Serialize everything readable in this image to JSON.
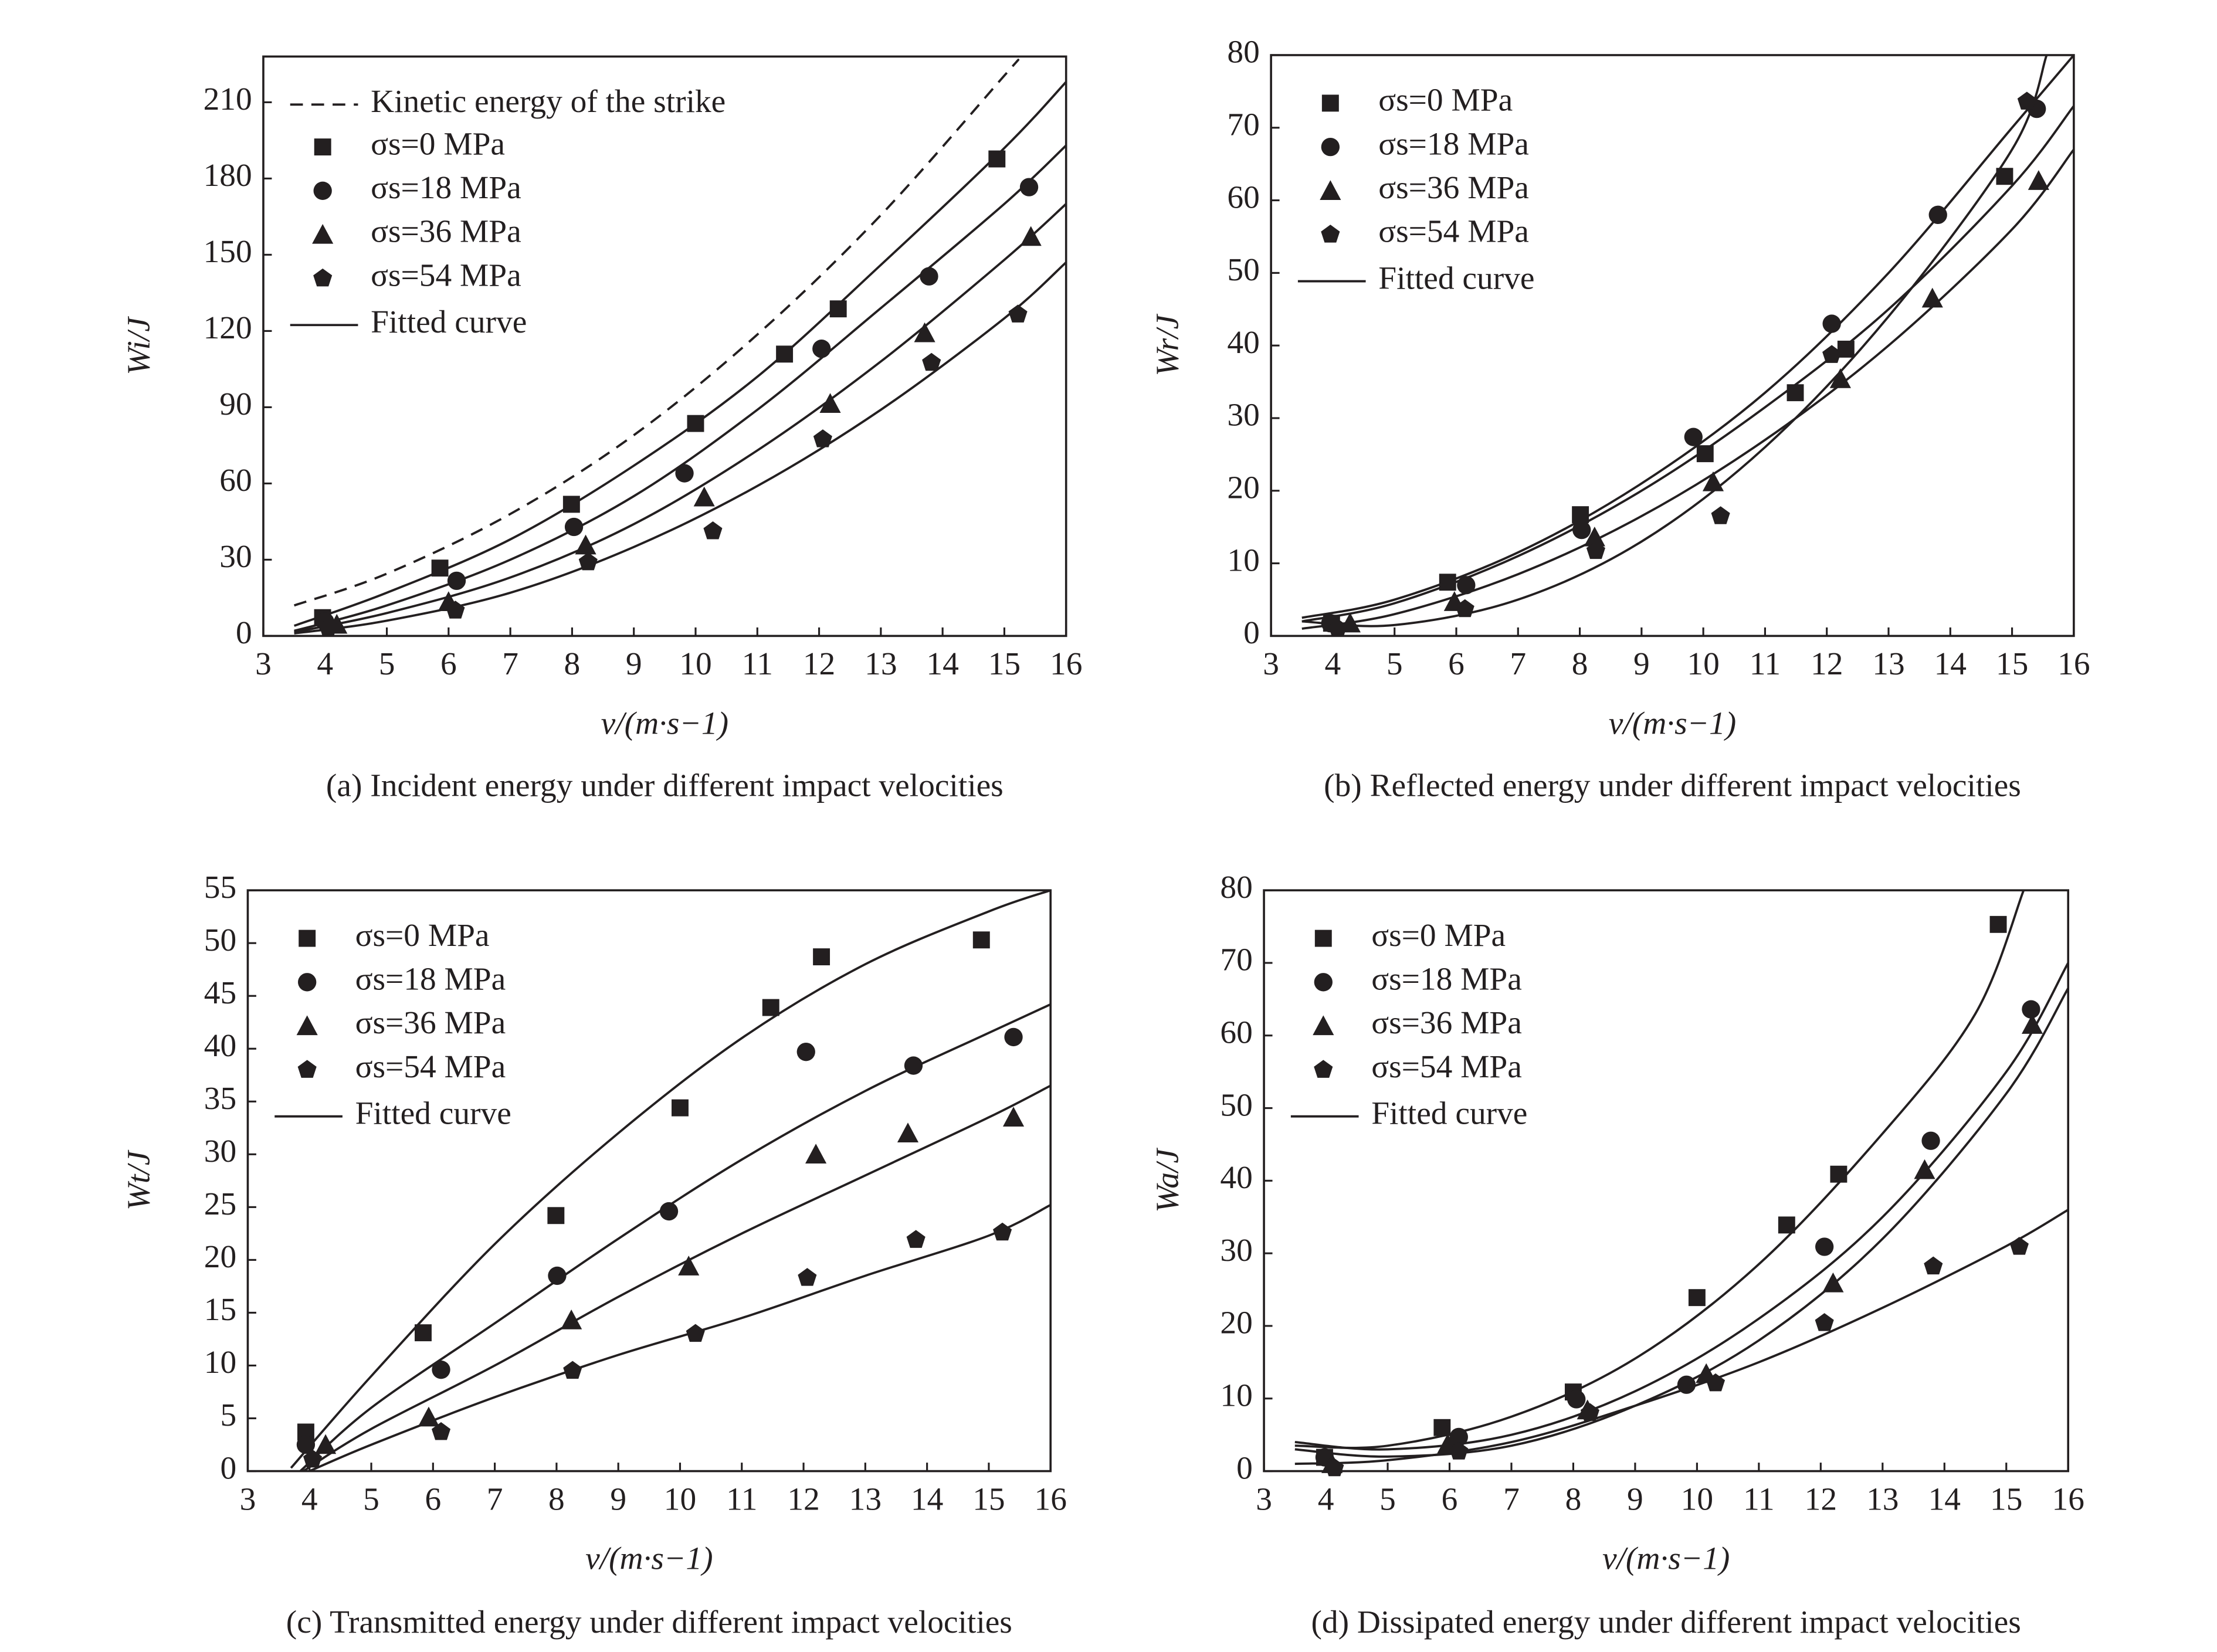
{
  "chart_data": [
    {
      "type": "scatter",
      "title": "(a) Incident energy under different impact velocities",
      "xlabel": "v/(m·s−1)",
      "ylabel": "Wi/J",
      "xlim": [
        3,
        16
      ],
      "xticks": [
        3,
        4,
        5,
        6,
        7,
        8,
        9,
        10,
        11,
        12,
        13,
        14,
        15,
        16
      ],
      "ylim": [
        0,
        228
      ],
      "yticks": [
        0,
        30,
        60,
        90,
        120,
        150,
        180,
        210
      ],
      "legend": "upper left",
      "color": "#231f20",
      "reference": {
        "name": "Kinetic energy of the strike",
        "style": "dashed",
        "x": [
          3.5,
          5,
          7,
          9,
          11,
          13,
          15,
          15.2
        ],
        "values": [
          12,
          24.5,
          48,
          79,
          118.6,
          165.6,
          220.5,
          226
        ]
      },
      "series": [
        {
          "name": "σs=0 MPa",
          "marker": "square",
          "x": [
            3.96,
            5.86,
            7.99,
            10.0,
            11.44,
            12.31,
            14.88
          ],
          "values": [
            7.2,
            26.7,
            51.8,
            83.6,
            110.9,
            128.7,
            187.7
          ]
        },
        {
          "name": "σs=18 MPa",
          "marker": "circle",
          "x": [
            4.0,
            6.13,
            8.03,
            9.82,
            12.04,
            13.78,
            15.4
          ],
          "values": [
            5.6,
            21.7,
            42.9,
            64,
            113,
            141.5,
            176.6
          ]
        },
        {
          "name": "σs=36 MPa",
          "marker": "triangle",
          "x": [
            4.19,
            6.0,
            8.22,
            10.14,
            12.18,
            13.71,
            15.43
          ],
          "values": [
            4.5,
            13.4,
            35.7,
            54.6,
            91.4,
            119.2,
            157.1
          ]
        },
        {
          "name": "σs=54 MPa",
          "marker": "pentagon",
          "x": [
            4.05,
            6.11,
            8.26,
            10.28,
            12.06,
            13.82,
            15.22
          ],
          "values": [
            3.3,
            10,
            29,
            41.2,
            77.4,
            107.5,
            126.5
          ]
        }
      ],
      "fit_label": "Fitted curve",
      "fits": [
        {
          "x": [
            3.5,
            5,
            7,
            9,
            11,
            13,
            15,
            16
          ],
          "values": [
            4,
            17,
            38,
            67,
            102,
            146,
            192,
            218
          ]
        },
        {
          "x": [
            3.5,
            5,
            7,
            9,
            11,
            13,
            15,
            16
          ],
          "values": [
            2,
            12,
            30,
            55,
            89,
            129,
            170,
            193
          ]
        },
        {
          "x": [
            3.5,
            5,
            7,
            9,
            11,
            13,
            15,
            16
          ],
          "values": [
            1.5,
            9,
            23,
            44,
            73,
            108,
            148,
            170
          ]
        },
        {
          "x": [
            3.5,
            5,
            7,
            9,
            11,
            13,
            15,
            16
          ],
          "values": [
            1,
            6,
            17,
            35,
            59,
            89,
            125,
            147
          ]
        }
      ]
    },
    {
      "type": "scatter",
      "title": "(b) Reflected energy under different impact velocities",
      "xlabel": "v/(m·s−1)",
      "ylabel": "Wr/J",
      "xlim": [
        3,
        16
      ],
      "xticks": [
        3,
        4,
        5,
        6,
        7,
        8,
        9,
        10,
        11,
        12,
        13,
        14,
        15,
        16
      ],
      "ylim": [
        0,
        80
      ],
      "yticks": [
        0,
        10,
        20,
        30,
        40,
        50,
        60,
        70,
        80
      ],
      "legend": "upper left",
      "color": "#231f20",
      "series": [
        {
          "name": "σs=0 MPa",
          "marker": "square",
          "x": [
            3.98,
            5.86,
            8.01,
            10.03,
            11.49,
            12.31,
            14.88
          ],
          "values": [
            1.75,
            7.4,
            16.7,
            25.1,
            33.5,
            39.5,
            63.3
          ]
        },
        {
          "name": "σs=18 MPa",
          "marker": "circle",
          "x": [
            3.96,
            6.16,
            8.03,
            9.84,
            12.08,
            13.8,
            15.4
          ],
          "values": [
            1.75,
            7,
            14.6,
            27.4,
            43,
            58,
            72.6
          ]
        },
        {
          "name": "σs=36 MPa",
          "marker": "triangle",
          "x": [
            4.28,
            5.97,
            8.24,
            10.16,
            12.22,
            13.71,
            15.43
          ],
          "values": [
            1.75,
            4.7,
            13.6,
            21.2,
            35.4,
            46.5,
            62.7
          ]
        },
        {
          "name": "σs=54 MPa",
          "marker": "pentagon",
          "x": [
            4.08,
            6.14,
            8.26,
            10.28,
            12.08,
            15.24
          ],
          "values": [
            1,
            3.7,
            11.7,
            16.5,
            38.7,
            73.6
          ]
        }
      ],
      "fit_label": "Fitted curve",
      "fits": [
        {
          "x": [
            3.5,
            5,
            7,
            9,
            11,
            13,
            15,
            16
          ],
          "values": [
            2,
            4.5,
            11,
            20,
            31.5,
            45,
            62,
            73
          ]
        },
        {
          "x": [
            3.5,
            5,
            7,
            9,
            11,
            13,
            15,
            16
          ],
          "values": [
            2.5,
            5,
            11.5,
            21,
            33.5,
            50,
            70,
            80
          ]
        },
        {
          "x": [
            3.5,
            5,
            7,
            9,
            11,
            13,
            15,
            16
          ],
          "values": [
            1,
            3,
            8.5,
            16.5,
            27,
            40,
            56,
            67
          ]
        },
        {
          "x": [
            3.5,
            5,
            7,
            9,
            11,
            13,
            15,
            15.56
          ],
          "values": [
            2,
            1.5,
            5,
            13,
            26,
            44,
            67,
            80
          ]
        }
      ]
    },
    {
      "type": "scatter",
      "title": "(c) Transmitted energy under different impact velocities",
      "xlabel": "v/(m·s−1)",
      "ylabel": "Wt/J",
      "xlim": [
        3,
        16
      ],
      "xticks": [
        3,
        4,
        5,
        6,
        7,
        8,
        9,
        10,
        11,
        12,
        13,
        14,
        15,
        16
      ],
      "ylim": [
        0,
        55
      ],
      "yticks": [
        0,
        5,
        10,
        15,
        20,
        25,
        30,
        35,
        40,
        45,
        50,
        55
      ],
      "legend": "upper left",
      "color": "#231f20",
      "series": [
        {
          "name": "σs=0 MPa",
          "marker": "square",
          "x": [
            3.94,
            5.84,
            7.99,
            10.0,
            11.47,
            12.29,
            14.88
          ],
          "values": [
            3.7,
            13.1,
            24.2,
            34.4,
            43.9,
            48.7,
            50.3
          ]
        },
        {
          "name": "σs=18 MPa",
          "marker": "circle",
          "x": [
            3.94,
            6.13,
            8.01,
            9.82,
            12.04,
            13.78,
            15.4
          ],
          "values": [
            2.5,
            9.6,
            18.5,
            24.6,
            39.7,
            38.4,
            41.1
          ]
        },
        {
          "name": "σs=36 MPa",
          "marker": "triangle",
          "x": [
            4.26,
            5.93,
            8.24,
            10.14,
            12.2,
            13.69,
            15.4
          ],
          "values": [
            2.5,
            5.1,
            14.3,
            19.4,
            30,
            32,
            33.5
          ]
        },
        {
          "name": "σs=54 MPa",
          "marker": "pentagon",
          "x": [
            4.05,
            6.13,
            8.26,
            10.25,
            12.06,
            13.82,
            15.22
          ],
          "values": [
            1.1,
            3.7,
            9.5,
            13,
            18.3,
            21.9,
            22.6
          ]
        }
      ],
      "fit_label": "Fitted curve",
      "fits": [
        {
          "x": [
            3.7,
            5,
            7,
            9,
            11,
            13,
            15,
            16
          ],
          "values": [
            0.3,
            9,
            21.5,
            32,
            41,
            48,
            53,
            55
          ]
        },
        {
          "x": [
            3.85,
            5,
            7,
            9,
            11,
            13,
            15,
            16
          ],
          "values": [
            0,
            6,
            14,
            22,
            29.5,
            36,
            41.5,
            44.2
          ]
        },
        {
          "x": [
            3.9,
            5,
            7,
            9,
            11,
            13,
            15,
            16
          ],
          "values": [
            0,
            4,
            10,
            16.5,
            22.5,
            28,
            33.5,
            36.5
          ]
        },
        {
          "x": [
            4.0,
            5,
            7,
            9,
            11,
            13,
            15,
            16
          ],
          "values": [
            0,
            2.5,
            7,
            11,
            14.5,
            18.5,
            22.3,
            25.2
          ]
        }
      ]
    },
    {
      "type": "scatter",
      "title": "(d) Dissipated energy under different impact velocities",
      "xlabel": "v/(m·s−1)",
      "ylabel": "Wa/J",
      "xlim": [
        3,
        16
      ],
      "xticks": [
        3,
        4,
        5,
        6,
        7,
        8,
        9,
        10,
        11,
        12,
        13,
        14,
        15,
        16
      ],
      "ylim": [
        0,
        80
      ],
      "yticks": [
        0,
        10,
        20,
        30,
        40,
        50,
        60,
        70,
        80
      ],
      "legend": "upper left",
      "color": "#231f20",
      "series": [
        {
          "name": "σs=0 MPa",
          "marker": "square",
          "x": [
            3.98,
            5.88,
            8.0,
            10.0,
            11.45,
            12.29,
            14.87
          ],
          "values": [
            1.9,
            6,
            10.9,
            23.9,
            33.9,
            40.9,
            75.3
          ]
        },
        {
          "name": "σs=18 MPa",
          "marker": "circle",
          "x": [
            3.98,
            6.15,
            8.05,
            9.83,
            12.06,
            13.78,
            15.4
          ],
          "values": [
            1.9,
            4.7,
            9.9,
            11.9,
            30.9,
            45.5,
            63.6
          ]
        },
        {
          "name": "σs=36 MPa",
          "marker": "triangle",
          "x": [
            4.1,
            5.97,
            8.23,
            10.15,
            12.2,
            13.68,
            15.42
          ],
          "values": [
            1,
            3.7,
            8.4,
            13.4,
            25.9,
            41.5,
            61.5
          ]
        },
        {
          "name": "σs=54 MPa",
          "marker": "pentagon",
          "x": [
            4.14,
            6.15,
            8.27,
            10.3,
            12.06,
            13.82,
            15.21
          ],
          "values": [
            0.4,
            2.7,
            8,
            12.1,
            20.4,
            28.2,
            30.9
          ]
        }
      ],
      "fit_label": "Fitted curve",
      "fits": [
        {
          "x": [
            3.5,
            5,
            7,
            9,
            11,
            13,
            14.5,
            15.28
          ],
          "values": [
            3.5,
            3.5,
            7.5,
            15.5,
            28.5,
            46.5,
            63,
            80
          ]
        },
        {
          "x": [
            3.5,
            5,
            7,
            9,
            11,
            13,
            15,
            16
          ],
          "values": [
            4,
            3,
            5,
            11,
            21,
            35,
            55,
            70
          ]
        },
        {
          "x": [
            3.5,
            5,
            7,
            9,
            11,
            13,
            15,
            16
          ],
          "values": [
            3,
            2,
            3.5,
            9,
            18,
            32,
            52,
            66.5
          ]
        },
        {
          "x": [
            3.5,
            5,
            7,
            9,
            11,
            13,
            15,
            16
          ],
          "values": [
            1,
            1.5,
            4,
            9,
            15,
            22.5,
            31,
            36
          ]
        }
      ]
    }
  ]
}
